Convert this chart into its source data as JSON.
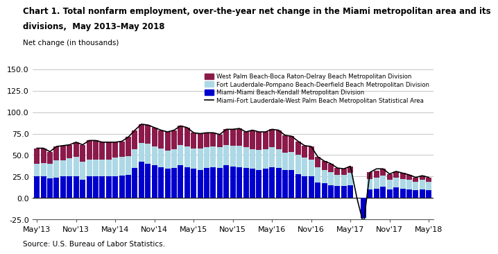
{
  "title_line1": "Chart 1. Total nonfarm employment, over-the-year net change in the Miami metropolitan area and its",
  "title_line2": "divisions,  May 2013–May 2018",
  "ylabel": "Net change (in thousands)",
  "source": "Source: U.S. Bureau of Labor Statistics.",
  "ylim": [
    -25,
    150
  ],
  "yticks": [
    -25,
    0,
    25,
    50,
    75,
    100,
    125,
    150
  ],
  "colors": {
    "west_palm": "#8B1A4A",
    "fort_laud": "#ADD8E6",
    "miami_miami": "#0000CD",
    "msa_line": "#000000"
  },
  "legend_labels": [
    "West Palm Beach-Boca Raton-Delray Beach Metropolitan Division",
    "Fort Lauderdale-Pompano Beach-Deerfield Beach Metropolitan Division",
    "Miami-Miami Beach-Kendall Metropolitan Division",
    "Miami-Fort Lauderdale-West Palm Beach Metropolitan Statistical Area"
  ],
  "tick_labels": [
    "May'13",
    "Nov'13",
    "May'14",
    "Nov'14",
    "May'15",
    "Nov'15",
    "May'16",
    "Nov'16",
    "May'17",
    "Nov'17",
    "May'18"
  ],
  "tick_pos": [
    0,
    6,
    12,
    18,
    24,
    30,
    36,
    42,
    48,
    54,
    60
  ],
  "miami_miami": [
    25,
    25,
    23,
    24,
    25,
    25,
    25,
    21,
    25,
    25,
    25,
    25,
    25,
    26,
    27,
    35,
    42,
    40,
    38,
    36,
    34,
    35,
    38,
    36,
    34,
    33,
    35,
    36,
    35,
    38,
    37,
    36,
    35,
    34,
    33,
    34,
    36,
    35,
    33,
    33,
    28,
    25,
    25,
    18,
    17,
    15,
    14,
    14,
    15,
    0,
    -23,
    10,
    11,
    13,
    10,
    12,
    11,
    10,
    9,
    10,
    9
  ],
  "fort_laud": [
    15,
    16,
    17,
    20,
    19,
    21,
    23,
    21,
    20,
    20,
    20,
    20,
    22,
    22,
    22,
    22,
    22,
    23,
    22,
    22,
    21,
    22,
    24,
    24,
    24,
    25,
    24,
    24,
    24,
    24,
    24,
    25,
    24,
    23,
    23,
    23,
    23,
    22,
    20,
    21,
    22,
    22,
    20,
    18,
    16,
    15,
    13,
    13,
    14,
    0,
    -4,
    12,
    13,
    13,
    11,
    12,
    11,
    11,
    10,
    11,
    10
  ],
  "west_palm": [
    18,
    17,
    14,
    16,
    17,
    16,
    17,
    20,
    22,
    22,
    20,
    20,
    18,
    18,
    22,
    22,
    22,
    22,
    22,
    21,
    22,
    22,
    22,
    22,
    18,
    17,
    17,
    16,
    15,
    18,
    19,
    20,
    18,
    22,
    21,
    20,
    21,
    22,
    20,
    18,
    16,
    14,
    15,
    12,
    10,
    10,
    8,
    7,
    8,
    0,
    -3,
    8,
    8,
    8,
    7,
    7,
    7,
    6,
    5,
    5,
    5
  ],
  "msa_total": [
    58,
    58,
    54,
    60,
    61,
    62,
    65,
    62,
    67,
    67,
    65,
    65,
    65,
    66,
    71,
    79,
    86,
    85,
    82,
    79,
    77,
    79,
    84,
    82,
    76,
    75,
    76,
    76,
    74,
    80,
    80,
    81,
    77,
    79,
    77,
    77,
    80,
    79,
    73,
    72,
    66,
    61,
    60,
    48,
    43,
    40,
    35,
    34,
    37,
    0,
    -30,
    30,
    34,
    34,
    28,
    31,
    29,
    27,
    24,
    26,
    24
  ],
  "n_months": 61
}
